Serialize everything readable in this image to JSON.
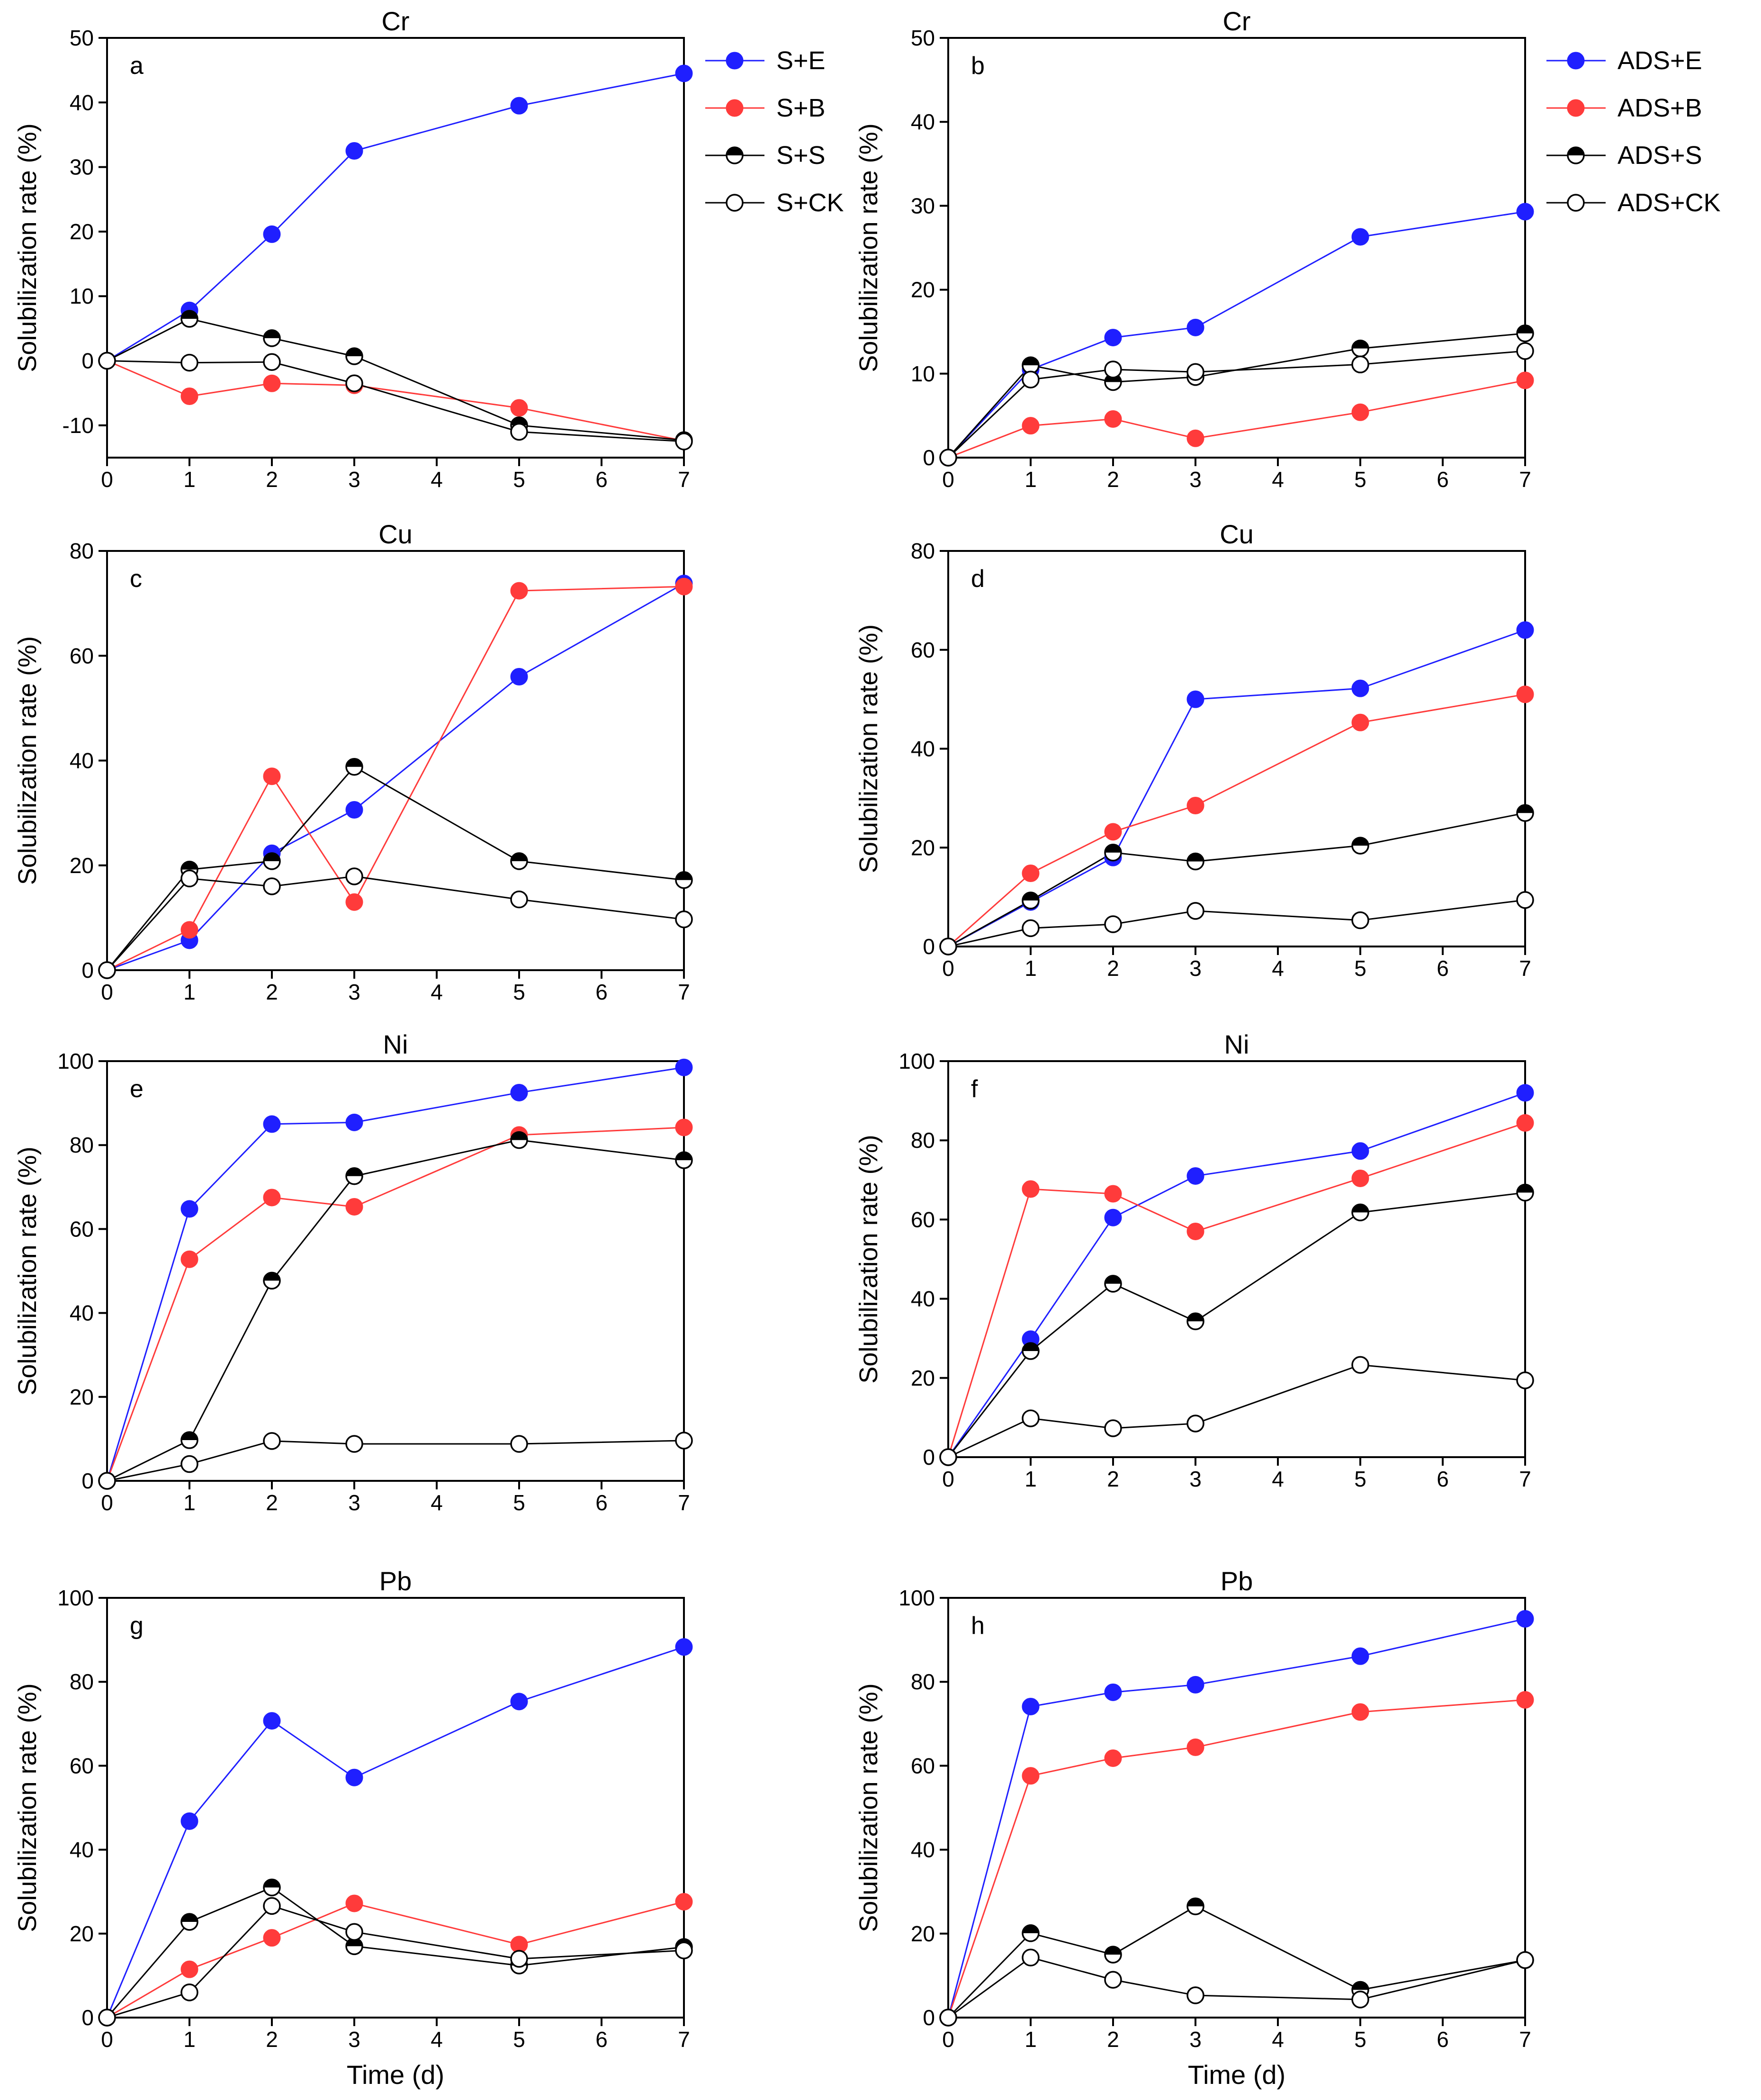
{
  "colors": {
    "S+E": "#1f1fff",
    "S+B": "#ff3b3b",
    "S+S": "#000000",
    "S+CK": "#000000"
  },
  "chart_data": [
    {
      "type": "line",
      "panel_label": "a",
      "title": "Cr",
      "xlabel": "",
      "ylabel": "Solubilization rate (%)",
      "xlim": [
        0,
        7
      ],
      "ylim": [
        -15,
        50
      ],
      "xticks": [
        0,
        1,
        2,
        3,
        4,
        5,
        6,
        7
      ],
      "yticks": [
        -10,
        0,
        10,
        20,
        30,
        40,
        50
      ],
      "legend_position": "top-right",
      "x": [
        0,
        1,
        2,
        3,
        5,
        7
      ],
      "series": [
        {
          "name": "S+E",
          "marker": "filled",
          "color": "#1f1fff",
          "values": [
            0,
            7.8,
            19.6,
            32.5,
            39.5,
            44.5
          ]
        },
        {
          "name": "S+B",
          "marker": "filled",
          "color": "#ff3b3b",
          "values": [
            0,
            -5.5,
            -3.5,
            -3.8,
            -7.3,
            -12.4
          ]
        },
        {
          "name": "S+S",
          "marker": "half",
          "color": "#000000",
          "values": [
            0,
            6.5,
            3.5,
            0.7,
            -10,
            -12.3
          ]
        },
        {
          "name": "S+CK",
          "marker": "open",
          "color": "#000000",
          "values": [
            0,
            -0.3,
            -0.2,
            -3.5,
            -11,
            -12.5
          ]
        }
      ]
    },
    {
      "type": "line",
      "panel_label": "b",
      "title": "Cr",
      "xlabel": "",
      "ylabel": "Solubilization rate (%)",
      "xlim": [
        0,
        7
      ],
      "ylim": [
        0,
        50
      ],
      "xticks": [
        0,
        1,
        2,
        3,
        4,
        5,
        6,
        7
      ],
      "yticks": [
        0,
        10,
        20,
        30,
        40,
        50
      ],
      "legend_position": "top-right",
      "x": [
        0,
        1,
        2,
        3,
        5,
        7
      ],
      "series": [
        {
          "name": "ADS+E",
          "marker": "filled",
          "color": "#1f1fff",
          "values": [
            0,
            10.5,
            14.3,
            15.5,
            26.3,
            29.3
          ]
        },
        {
          "name": "ADS+B",
          "marker": "filled",
          "color": "#ff3b3b",
          "values": [
            0,
            3.8,
            4.6,
            2.3,
            5.4,
            9.2
          ]
        },
        {
          "name": "ADS+S",
          "marker": "half",
          "color": "#000000",
          "values": [
            0,
            11,
            9,
            9.6,
            13,
            14.8
          ]
        },
        {
          "name": "ADS+CK",
          "marker": "open",
          "color": "#000000",
          "values": [
            0,
            9.3,
            10.5,
            10.2,
            11.1,
            12.7
          ]
        }
      ]
    },
    {
      "type": "line",
      "panel_label": "c",
      "title": "Cu",
      "xlabel": "",
      "ylabel": "Solubilization rate (%)",
      "xlim": [
        0,
        7
      ],
      "ylim": [
        0,
        80
      ],
      "xticks": [
        0,
        1,
        2,
        3,
        4,
        5,
        6,
        7
      ],
      "yticks": [
        0,
        20,
        40,
        60,
        80
      ],
      "x": [
        0,
        1,
        2,
        3,
        5,
        7
      ],
      "series": [
        {
          "name": "S+E",
          "marker": "filled",
          "color": "#1f1fff",
          "values": [
            0,
            5.7,
            22.3,
            30.6,
            56,
            73.8
          ]
        },
        {
          "name": "S+B",
          "marker": "filled",
          "color": "#ff3b3b",
          "values": [
            0,
            7.7,
            37,
            13,
            72.4,
            73.2
          ]
        },
        {
          "name": "S+S",
          "marker": "half",
          "color": "#000000",
          "values": [
            0,
            19.2,
            20.8,
            38.8,
            20.8,
            17.2
          ]
        },
        {
          "name": "S+CK",
          "marker": "open",
          "color": "#000000",
          "values": [
            0,
            17.5,
            16,
            17.9,
            13.5,
            9.7
          ]
        }
      ]
    },
    {
      "type": "line",
      "panel_label": "d",
      "title": "Cu",
      "xlabel": "",
      "ylabel": "Solubilization rate (%)",
      "xlim": [
        0,
        7
      ],
      "ylim": [
        0,
        80
      ],
      "xticks": [
        0,
        1,
        2,
        3,
        4,
        5,
        6,
        7
      ],
      "yticks": [
        0,
        20,
        40,
        60,
        80
      ],
      "x": [
        0,
        1,
        2,
        3,
        5,
        7
      ],
      "series": [
        {
          "name": "ADS+E",
          "marker": "filled",
          "color": "#1f1fff",
          "values": [
            0,
            9,
            18,
            50,
            52.2,
            64
          ]
        },
        {
          "name": "ADS+B",
          "marker": "filled",
          "color": "#ff3b3b",
          "values": [
            0,
            14.8,
            23.2,
            28.5,
            45.3,
            51
          ]
        },
        {
          "name": "ADS+S",
          "marker": "half",
          "color": "#000000",
          "values": [
            0,
            9.3,
            19,
            17.2,
            20.4,
            27
          ]
        },
        {
          "name": "ADS+CK",
          "marker": "open",
          "color": "#000000",
          "values": [
            0,
            3.7,
            4.5,
            7.2,
            5.3,
            9.4
          ]
        }
      ]
    },
    {
      "type": "line",
      "panel_label": "e",
      "title": "Ni",
      "xlabel": "",
      "ylabel": "Solubilization rate (%)",
      "xlim": [
        0,
        7
      ],
      "ylim": [
        0,
        100
      ],
      "xticks": [
        0,
        1,
        2,
        3,
        4,
        5,
        6,
        7
      ],
      "yticks": [
        0,
        20,
        40,
        60,
        80,
        100
      ],
      "x": [
        0,
        1,
        2,
        3,
        5,
        7
      ],
      "series": [
        {
          "name": "S+E",
          "marker": "filled",
          "color": "#1f1fff",
          "values": [
            0,
            64.8,
            85,
            85.4,
            92.5,
            98.5
          ]
        },
        {
          "name": "S+B",
          "marker": "filled",
          "color": "#ff3b3b",
          "values": [
            0,
            52.8,
            67.5,
            65.3,
            82.4,
            84.2
          ]
        },
        {
          "name": "S+S",
          "marker": "half",
          "color": "#000000",
          "values": [
            0,
            9.7,
            47.7,
            72.6,
            81.2,
            76.4
          ]
        },
        {
          "name": "S+CK",
          "marker": "open",
          "color": "#000000",
          "values": [
            0,
            4,
            9.5,
            8.8,
            8.8,
            9.6
          ]
        }
      ]
    },
    {
      "type": "line",
      "panel_label": "f",
      "title": "Ni",
      "xlabel": "",
      "ylabel": "Solubilization rate (%)",
      "xlim": [
        0,
        7
      ],
      "ylim": [
        0,
        100
      ],
      "xticks": [
        0,
        1,
        2,
        3,
        4,
        5,
        6,
        7
      ],
      "yticks": [
        0,
        20,
        40,
        60,
        80,
        100
      ],
      "x": [
        0,
        1,
        2,
        3,
        5,
        7
      ],
      "series": [
        {
          "name": "ADS+E",
          "marker": "filled",
          "color": "#1f1fff",
          "values": [
            0,
            29.8,
            60.5,
            71,
            77.3,
            92
          ]
        },
        {
          "name": "ADS+B",
          "marker": "filled",
          "color": "#ff3b3b",
          "values": [
            0,
            67.7,
            66.5,
            57,
            70.4,
            84.4
          ]
        },
        {
          "name": "ADS+S",
          "marker": "half",
          "color": "#000000",
          "values": [
            0,
            26.8,
            43.8,
            34.3,
            61.8,
            66.8
          ]
        },
        {
          "name": "ADS+CK",
          "marker": "open",
          "color": "#000000",
          "values": [
            0,
            9.8,
            7.3,
            8.5,
            23.3,
            19.4
          ]
        }
      ]
    },
    {
      "type": "line",
      "panel_label": "g",
      "title": "Pb",
      "xlabel": "Time (d)",
      "ylabel": "Solubilization rate (%)",
      "xlim": [
        0,
        7
      ],
      "ylim": [
        0,
        100
      ],
      "xticks": [
        0,
        1,
        2,
        3,
        4,
        5,
        6,
        7
      ],
      "yticks": [
        0,
        20,
        40,
        60,
        80,
        100
      ],
      "x": [
        0,
        1,
        2,
        3,
        5,
        7
      ],
      "series": [
        {
          "name": "S+E",
          "marker": "filled",
          "color": "#1f1fff",
          "values": [
            0,
            46.8,
            70.7,
            57.2,
            75.3,
            88.3
          ]
        },
        {
          "name": "S+B",
          "marker": "filled",
          "color": "#ff3b3b",
          "values": [
            0,
            11.5,
            19,
            27.2,
            17.4,
            27.6
          ]
        },
        {
          "name": "S+S",
          "marker": "half",
          "color": "#000000",
          "values": [
            0,
            22.8,
            31,
            17,
            12.4,
            16.8
          ]
        },
        {
          "name": "S+CK",
          "marker": "open",
          "color": "#000000",
          "values": [
            0,
            6,
            26.6,
            20.4,
            14,
            16
          ]
        }
      ]
    },
    {
      "type": "line",
      "panel_label": "h",
      "title": "Pb",
      "xlabel": "Time (d)",
      "ylabel": "Solubilization rate (%)",
      "xlim": [
        0,
        7
      ],
      "ylim": [
        0,
        100
      ],
      "xticks": [
        0,
        1,
        2,
        3,
        4,
        5,
        6,
        7
      ],
      "yticks": [
        0,
        20,
        40,
        60,
        80,
        100
      ],
      "x": [
        0,
        1,
        2,
        3,
        5,
        7
      ],
      "series": [
        {
          "name": "ADS+E",
          "marker": "filled",
          "color": "#1f1fff",
          "values": [
            0,
            74.1,
            77.5,
            79.3,
            86.1,
            95
          ]
        },
        {
          "name": "ADS+B",
          "marker": "filled",
          "color": "#ff3b3b",
          "values": [
            0,
            57.6,
            61.8,
            64.4,
            72.8,
            75.7
          ]
        },
        {
          "name": "ADS+S",
          "marker": "half",
          "color": "#000000",
          "values": [
            0,
            20.1,
            15,
            26.5,
            6.6,
            13.7
          ]
        },
        {
          "name": "ADS+CK",
          "marker": "open",
          "color": "#000000",
          "values": [
            0,
            14.3,
            9,
            5.3,
            4.3,
            13.7
          ]
        }
      ]
    }
  ]
}
